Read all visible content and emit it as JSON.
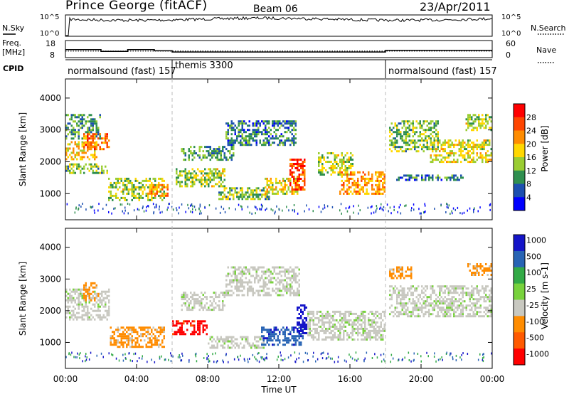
{
  "header": {
    "station": "Prince George (fitACF)",
    "beam": "Beam 06",
    "date": "23/Apr/2011"
  },
  "sky_panel": {
    "left_label": "N.Sky",
    "right_label": "N.Search",
    "tick_top": "10^5",
    "tick_bottom": "10^0"
  },
  "freq_panel": {
    "label_line1": "Freq.",
    "label_line2": "[MHz]",
    "left_ticks": [
      "18",
      "8"
    ],
    "right_ticks": [
      "60",
      "0"
    ],
    "right_label": "Nave",
    "freq_mhz_steps": [
      {
        "t": 0.0,
        "v": 12.5
      },
      {
        "t": 2.0,
        "v": 11.0
      },
      {
        "t": 3.5,
        "v": 12.5
      },
      {
        "t": 5.0,
        "v": 11.5
      },
      {
        "t": 6.0,
        "v": 10.4
      },
      {
        "t": 18.0,
        "v": 11.8
      },
      {
        "t": 24.0,
        "v": 11.8
      }
    ],
    "nave_dotted": 25
  },
  "cpid": {
    "label": "CPID",
    "modes": [
      {
        "name": "normalsound (fast) 157",
        "start": 0,
        "end": 6.0
      },
      {
        "name": "themis 3300",
        "start": 6.0,
        "end": 18.0
      },
      {
        "name": "normalsound (fast) 157",
        "start": 18.0,
        "end": 24.0
      }
    ]
  },
  "x_axis": {
    "title": "Time UT",
    "ticks": [
      "00:00",
      "04:00",
      "08:00",
      "12:00",
      "16:00",
      "20:00",
      "00:00"
    ],
    "range_hours": [
      0,
      24
    ]
  },
  "chart_data": [
    {
      "type": "heatmap",
      "ylabel": "Slant Range [km]",
      "yticks": [
        1000,
        2000,
        3000,
        4000
      ],
      "ylim": [
        180,
        4600
      ],
      "colorbar": {
        "title": "Power [dB]",
        "tick_labels": [
          "28",
          "24",
          "20",
          "16",
          "12",
          "8",
          "4"
        ],
        "range": [
          0,
          30
        ],
        "colors": [
          "#0000ff",
          "#1c4fb0",
          "#2f8f4f",
          "#9acd32",
          "#ffd700",
          "#ff8c00",
          "#ff4500",
          "#ff0000"
        ]
      },
      "echo_regions": [
        {
          "t0": 0.0,
          "t1": 1.8,
          "r0": 2050,
          "r1": 2650,
          "level": 18
        },
        {
          "t0": 0.0,
          "t1": 2.0,
          "r0": 2700,
          "r1": 3500,
          "level": 10
        },
        {
          "t0": 0.0,
          "t1": 2.4,
          "r0": 1650,
          "r1": 1950,
          "level": 12
        },
        {
          "t0": 1.0,
          "t1": 2.5,
          "r0": 2400,
          "r1": 2900,
          "level": 22
        },
        {
          "t0": 2.4,
          "t1": 5.6,
          "r0": 800,
          "r1": 1500,
          "level": 14
        },
        {
          "t0": 4.6,
          "t1": 5.8,
          "r0": 900,
          "r1": 1300,
          "level": 20
        },
        {
          "t0": 6.2,
          "t1": 9.0,
          "r0": 1200,
          "r1": 1800,
          "level": 14
        },
        {
          "t0": 6.5,
          "t1": 9.5,
          "r0": 2050,
          "r1": 2500,
          "level": 10
        },
        {
          "t0": 8.6,
          "t1": 11.5,
          "r0": 800,
          "r1": 1200,
          "level": 12
        },
        {
          "t0": 9.0,
          "t1": 13.0,
          "r0": 2500,
          "r1": 3300,
          "level": 8
        },
        {
          "t0": 11.2,
          "t1": 13.0,
          "r0": 1000,
          "r1": 1500,
          "level": 16
        },
        {
          "t0": 12.6,
          "t1": 13.5,
          "r0": 1100,
          "r1": 2100,
          "level": 24
        },
        {
          "t0": 14.2,
          "t1": 16.2,
          "r0": 1600,
          "r1": 2300,
          "level": 14
        },
        {
          "t0": 15.4,
          "t1": 18.0,
          "r0": 1000,
          "r1": 1700,
          "level": 20
        },
        {
          "t0": 18.2,
          "t1": 21.0,
          "r0": 2300,
          "r1": 3300,
          "level": 12
        },
        {
          "t0": 18.6,
          "t1": 22.5,
          "r0": 1400,
          "r1": 1600,
          "level": 8
        },
        {
          "t0": 20.5,
          "t1": 24.0,
          "r0": 2000,
          "r1": 2700,
          "level": 16
        },
        {
          "t0": 22.5,
          "t1": 24.0,
          "r0": 3000,
          "r1": 3500,
          "level": 14
        }
      ]
    },
    {
      "type": "heatmap",
      "ylabel": "Slant Range [km]",
      "yticks": [
        1000,
        2000,
        3000,
        4000
      ],
      "ylim": [
        180,
        4600
      ],
      "colorbar": {
        "title": "Velocity [m s-1]",
        "tick_labels": [
          "1000",
          "500",
          "100",
          "25",
          "-25",
          "-100",
          "-500",
          "-1000"
        ],
        "colors": [
          "#1414c8",
          "#2864b4",
          "#32aa46",
          "#78d23c",
          "#c8c8c0",
          "#ff8c00",
          "#ff5a00",
          "#ff0000"
        ]
      },
      "echo_regions": [
        {
          "t0": 0.0,
          "t1": 2.5,
          "r0": 1700,
          "r1": 2700,
          "class": "-25..25"
        },
        {
          "t0": 1.0,
          "t1": 1.9,
          "r0": 2300,
          "r1": 2900,
          "class": "-100..-500"
        },
        {
          "t0": 2.5,
          "t1": 5.6,
          "r0": 850,
          "r1": 1500,
          "class": "-100..-500"
        },
        {
          "t0": 6.0,
          "t1": 8.0,
          "r0": 1250,
          "r1": 1700,
          "class": "-500..-1000"
        },
        {
          "t0": 6.5,
          "t1": 9.0,
          "r0": 2000,
          "r1": 2600,
          "class": "-25..25"
        },
        {
          "t0": 8.0,
          "t1": 11.2,
          "r0": 800,
          "r1": 1200,
          "class": "-25..25"
        },
        {
          "t0": 9.0,
          "t1": 13.2,
          "r0": 2500,
          "r1": 3400,
          "class": "-25..25"
        },
        {
          "t0": 11.0,
          "t1": 13.4,
          "r0": 950,
          "r1": 1500,
          "class": "100..500"
        },
        {
          "t0": 13.0,
          "t1": 13.6,
          "r0": 1300,
          "r1": 2200,
          "class": "500..1000"
        },
        {
          "t0": 13.6,
          "t1": 18.0,
          "r0": 1100,
          "r1": 2000,
          "class": "-25..25"
        },
        {
          "t0": 18.2,
          "t1": 24.0,
          "r0": 1800,
          "r1": 2800,
          "class": "-25..25"
        },
        {
          "t0": 22.6,
          "t1": 24.0,
          "r0": 3100,
          "r1": 3500,
          "class": "-100..-500"
        },
        {
          "t0": 18.2,
          "t1": 19.5,
          "r0": 3000,
          "r1": 3400,
          "class": "-100..-500"
        }
      ]
    }
  ]
}
